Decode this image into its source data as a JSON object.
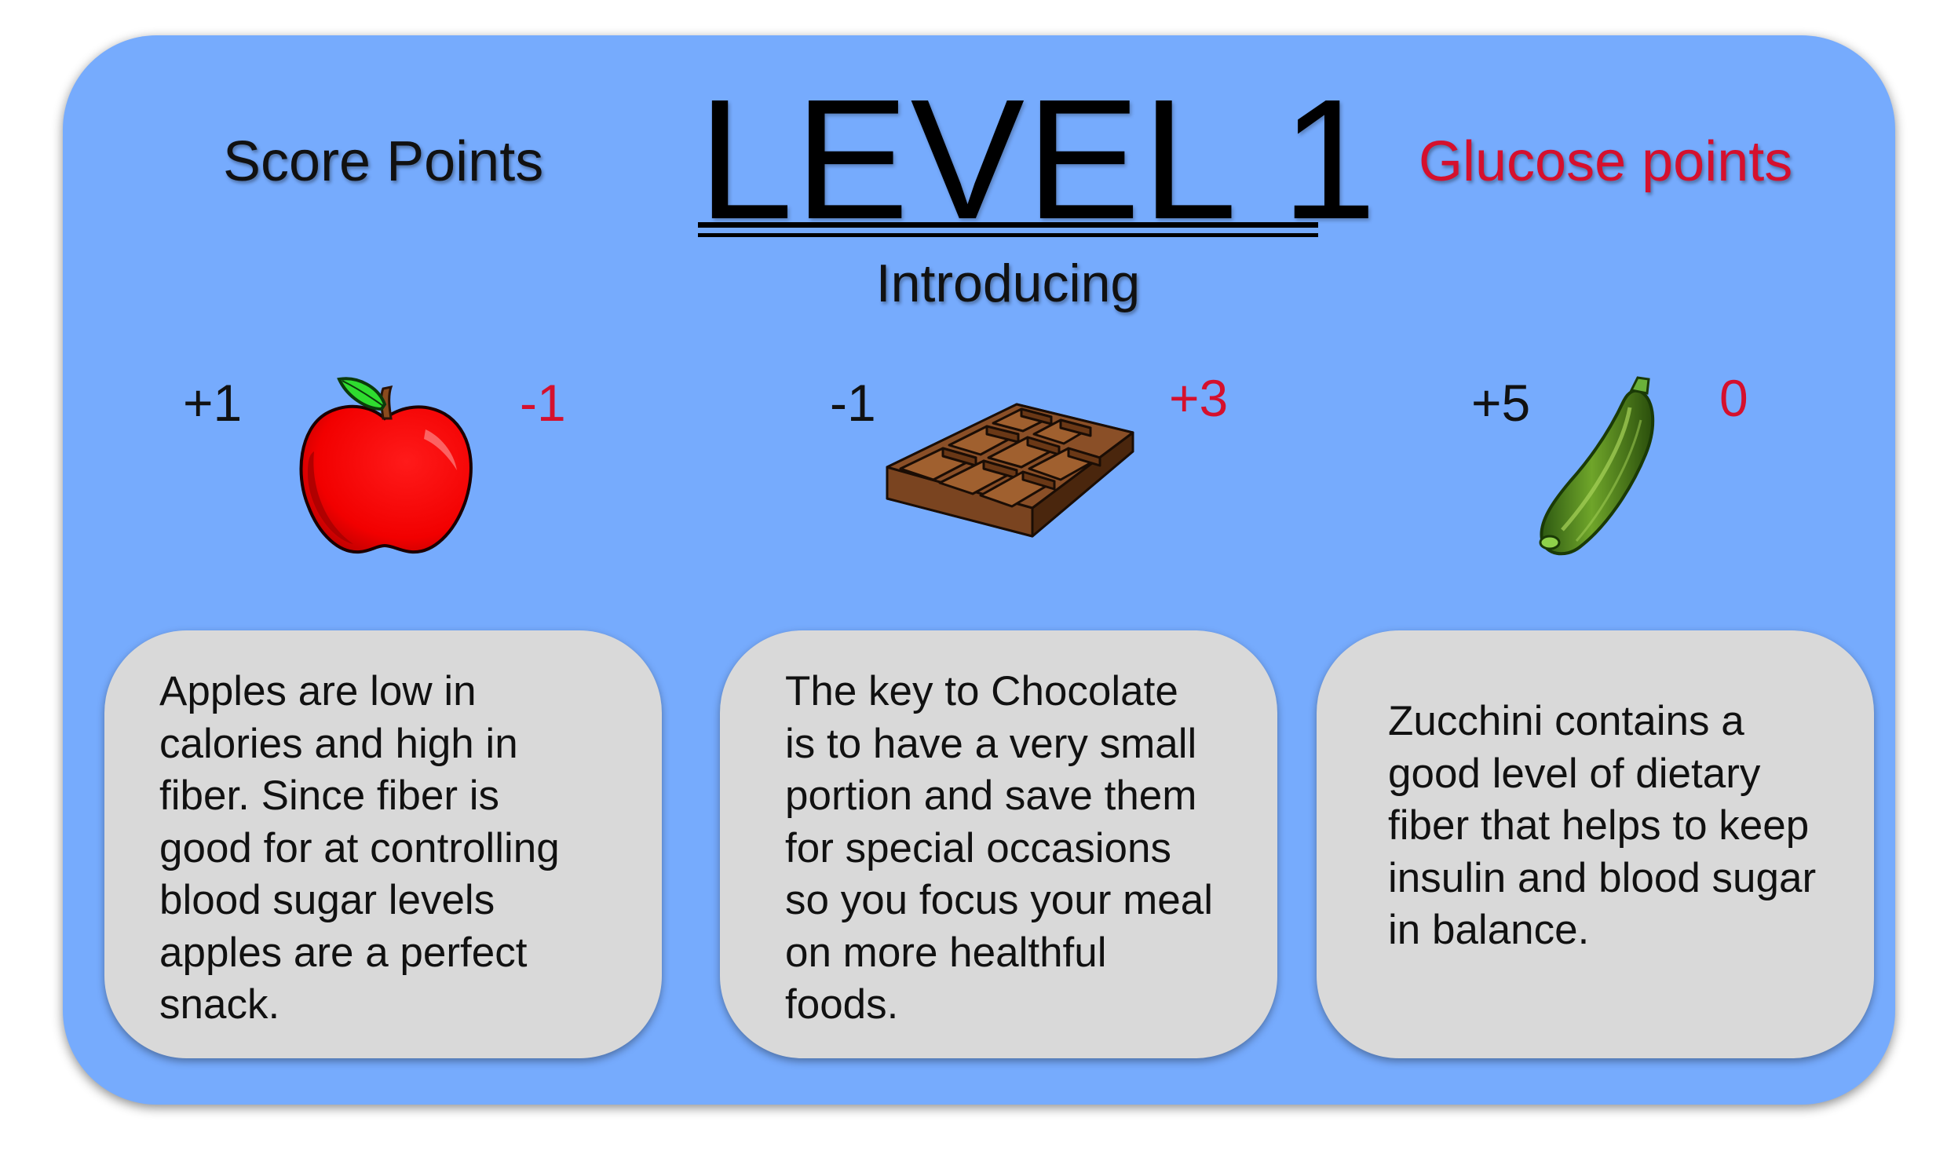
{
  "header": {
    "score_label": "Score Points",
    "glucose_label": "Glucose points",
    "title": "LEVEL 1",
    "subtitle": "Introducing"
  },
  "colors": {
    "panel_background": "#76abfd",
    "card_background": "#d9d9d9",
    "glucose_red": "#d5102d",
    "score_black": "#111111"
  },
  "foods": [
    {
      "name": "Apple",
      "icon": "apple-icon",
      "score": "+1",
      "glucose": "-1",
      "description": "Apples are low in\ncalories and high in\nfiber. Since fiber is\ngood for at controlling\nblood sugar levels\napples are a perfect\nsnack."
    },
    {
      "name": "Chocolate",
      "icon": "chocolate-bar-icon",
      "score": "-1",
      "glucose": "+3",
      "description": "The key to Chocolate\nis to have a very small\nportion and save them\nfor special occasions\nso you focus your meal\non more healthful\nfoods."
    },
    {
      "name": "Zucchini",
      "icon": "zucchini-icon",
      "score": "+5",
      "glucose": "0",
      "description": "Zucchini contains a\ngood level of dietary\nfiber that helps to keep\ninsulin and blood sugar\nin balance."
    }
  ]
}
